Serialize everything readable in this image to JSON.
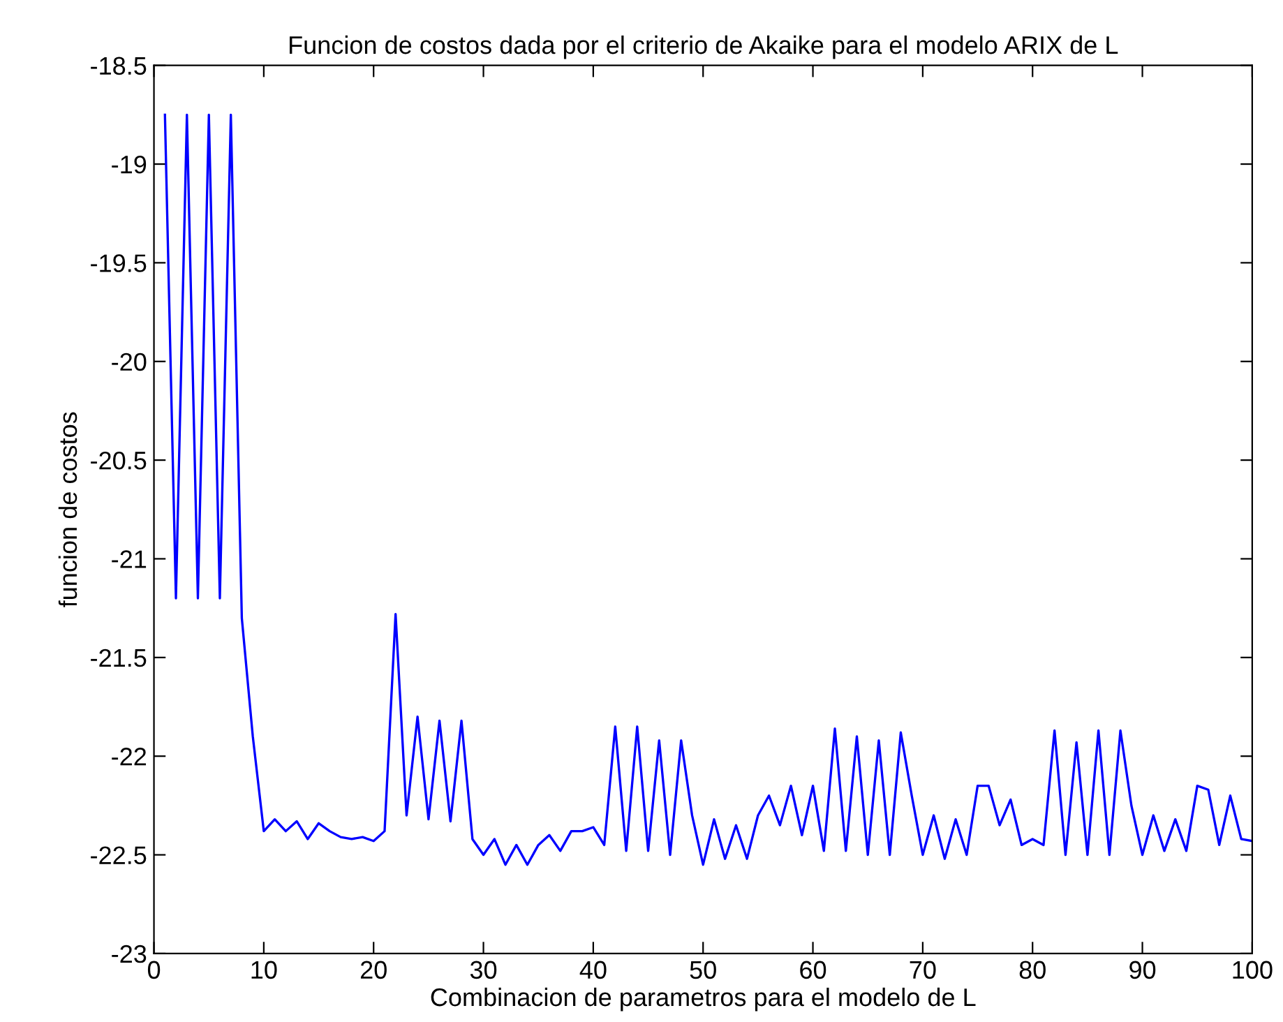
{
  "chart_data": {
    "type": "line",
    "title": "Funcion de costos dada por el criterio de Akaike para el modelo ARIX de L",
    "xlabel": "Combinacion de parametros para el modelo de L",
    "ylabel": "funcion de costos",
    "x": [
      1,
      2,
      3,
      4,
      5,
      6,
      7,
      8,
      9,
      10,
      11,
      12,
      13,
      14,
      15,
      16,
      17,
      18,
      19,
      20,
      21,
      22,
      23,
      24,
      25,
      26,
      27,
      28,
      29,
      30,
      31,
      32,
      33,
      34,
      35,
      36,
      37,
      38,
      39,
      40,
      41,
      42,
      43,
      44,
      45,
      46,
      47,
      48,
      49,
      50,
      51,
      52,
      53,
      54,
      55,
      56,
      57,
      58,
      59,
      60,
      61,
      62,
      63,
      64,
      65,
      66,
      67,
      68,
      69,
      70,
      71,
      72,
      73,
      74,
      75,
      76,
      77,
      78,
      79,
      80,
      81,
      82,
      83,
      84,
      85,
      86,
      87,
      88,
      89,
      90,
      91,
      92,
      93,
      94,
      95,
      96,
      97,
      98,
      99,
      100
    ],
    "series": [
      {
        "color": "#0000ff",
        "values": [
          -18.75,
          -21.2,
          -18.75,
          -21.2,
          -18.75,
          -21.2,
          -18.75,
          -21.3,
          -21.9,
          -22.38,
          -22.32,
          -22.38,
          -22.33,
          -22.42,
          -22.34,
          -22.38,
          -22.41,
          -22.42,
          -22.41,
          -22.43,
          -22.38,
          -21.28,
          -22.3,
          -21.8,
          -22.32,
          -21.82,
          -22.33,
          -21.82,
          -22.42,
          -22.5,
          -22.42,
          -22.55,
          -22.45,
          -22.55,
          -22.45,
          -22.4,
          -22.48,
          -22.38,
          -22.38,
          -22.36,
          -22.45,
          -21.85,
          -22.48,
          -21.85,
          -22.48,
          -21.92,
          -22.5,
          -21.92,
          -22.3,
          -22.55,
          -22.32,
          -22.52,
          -22.35,
          -22.52,
          -22.3,
          -22.2,
          -22.35,
          -22.15,
          -22.4,
          -22.15,
          -22.48,
          -21.86,
          -22.48,
          -21.9,
          -22.5,
          -21.92,
          -22.5,
          -21.88,
          -22.2,
          -22.5,
          -22.3,
          -22.52,
          -22.32,
          -22.5,
          -22.15,
          -22.15,
          -22.35,
          -22.22,
          -22.45,
          -22.42,
          -22.45,
          -21.87,
          -22.5,
          -21.93,
          -22.5,
          -21.87,
          -22.5,
          -21.87,
          -22.25,
          -22.5,
          -22.3,
          -22.48,
          -22.32,
          -22.48,
          -22.15,
          -22.17,
          -22.45,
          -22.2,
          -22.42,
          -22.43
        ]
      }
    ],
    "xlim": [
      0,
      100
    ],
    "xticks": [
      0,
      10,
      20,
      30,
      40,
      50,
      60,
      70,
      80,
      90,
      100
    ],
    "ylim": [
      -23,
      -18.5
    ],
    "yticks": [
      -23,
      -22.5,
      -22,
      -21.5,
      -21,
      -20.5,
      -20,
      -19.5,
      -19,
      -18.5
    ],
    "grid": false,
    "legend": false,
    "marker": "none",
    "line_style": "solid"
  }
}
